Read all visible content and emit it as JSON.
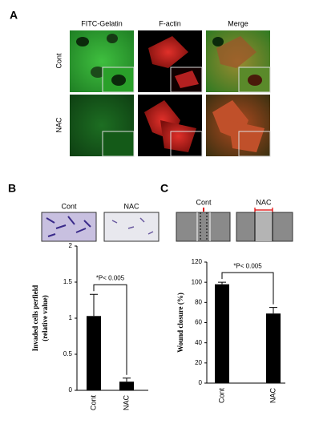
{
  "panels": {
    "a": {
      "label": "A",
      "columns": [
        "FITC-Gelatin",
        "F-actin",
        "Merge"
      ],
      "rows": [
        "Cont",
        "NAC"
      ]
    },
    "b": {
      "label": "B",
      "images": [
        "Cont",
        "NAC"
      ]
    },
    "c": {
      "label": "C",
      "images": [
        "Cont",
        "NAC"
      ]
    }
  },
  "chart_data": [
    {
      "type": "bar",
      "y_label": [
        "Invaded cells perfield",
        "(relative value)"
      ],
      "categories": [
        "Cont",
        "NAC"
      ],
      "values": [
        1.03,
        0.12
      ],
      "errors": [
        0.3,
        0.05
      ],
      "color": "#000000",
      "ylim": [
        0,
        2
      ],
      "yticks": [
        0,
        0.5,
        1,
        1.5,
        2
      ],
      "annotation": "*P< 0.005"
    },
    {
      "type": "bar",
      "y_label": [
        "Wound closure (%)"
      ],
      "categories": [
        "Cont",
        "NAC"
      ],
      "values": [
        98,
        69
      ],
      "errors": [
        2,
        6
      ],
      "color": "#000000",
      "ylim": [
        0,
        120
      ],
      "yticks": [
        0,
        20,
        40,
        60,
        80,
        100,
        120
      ],
      "annotation": "*P< 0.005"
    }
  ]
}
